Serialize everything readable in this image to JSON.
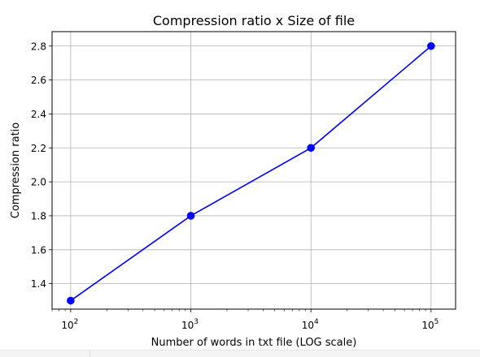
{
  "chart_data": {
    "type": "line",
    "title": "Compression ratio x Size of file",
    "xlabel": "Number of words in txt file (LOG scale)",
    "ylabel": "Compression ratio",
    "xscale": "log",
    "x_ticks": [
      {
        "value": 100,
        "base": "10",
        "exp": "2"
      },
      {
        "value": 1000,
        "base": "10",
        "exp": "3"
      },
      {
        "value": 10000,
        "base": "10",
        "exp": "4"
      },
      {
        "value": 100000,
        "base": "10",
        "exp": "5"
      }
    ],
    "y_ticks": [
      "1.4",
      "1.6",
      "1.8",
      "2.0",
      "2.2",
      "2.4",
      "2.6",
      "2.8"
    ],
    "xlim": [
      70,
      160000
    ],
    "ylim": [
      1.25,
      2.885
    ],
    "grid": true,
    "series": [
      {
        "color": "#0000ff",
        "marker": "circle",
        "x": [
          100,
          1000,
          10000,
          100000
        ],
        "y": [
          1.3,
          1.8,
          2.2,
          2.8
        ]
      }
    ]
  }
}
